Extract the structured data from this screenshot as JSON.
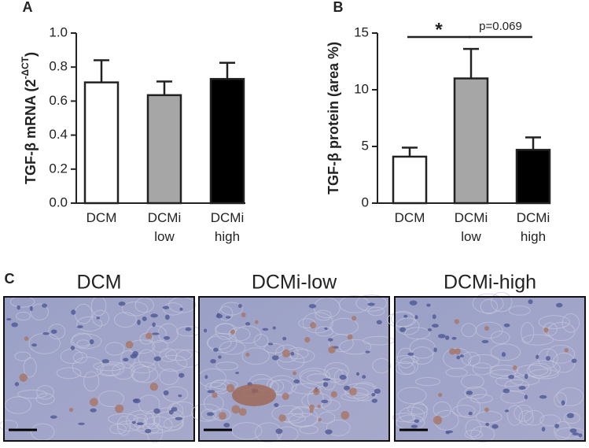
{
  "chart_data": [
    {
      "type": "bar",
      "panel_label": "A",
      "ylabel": [
        "TGF-β mRNA (2",
        "-ΔCT",
        ")"
      ],
      "categories": [
        "DCM",
        "DCMi low",
        "DCMi high"
      ],
      "values": [
        0.71,
        0.635,
        0.73
      ],
      "errors": [
        0.13,
        0.08,
        0.095
      ],
      "colors": [
        "#ffffff",
        "#a6a6a6",
        "#000000"
      ],
      "ylim": [
        0,
        1.0
      ],
      "yticks": [
        {
          "value": 0,
          "label": "0.0"
        },
        0.2,
        0.4,
        0.6,
        0.8,
        {
          "value": 1.0,
          "label": "1.0"
        }
      ]
    },
    {
      "type": "bar",
      "panel_label": "B",
      "ylabel": [
        "TGF-β protein (area %)"
      ],
      "categories": [
        "DCM",
        "DCMi low",
        "DCMi high"
      ],
      "values": [
        4.1,
        11.0,
        4.7
      ],
      "errors": [
        0.8,
        2.6,
        1.1
      ],
      "colors": [
        "#ffffff",
        "#a6a6a6",
        "#000000"
      ],
      "ylim": [
        0,
        15
      ],
      "yticks": [
        0,
        5,
        10,
        15
      ],
      "annotations": [
        {
          "text": "*",
          "from": 0,
          "to": 1
        },
        {
          "text": "p=0.069",
          "from": 1,
          "to": 2
        }
      ]
    }
  ],
  "panel_c": {
    "label": "C",
    "images": [
      "DCM",
      "DCMi-low",
      "DCMi-high"
    ]
  }
}
